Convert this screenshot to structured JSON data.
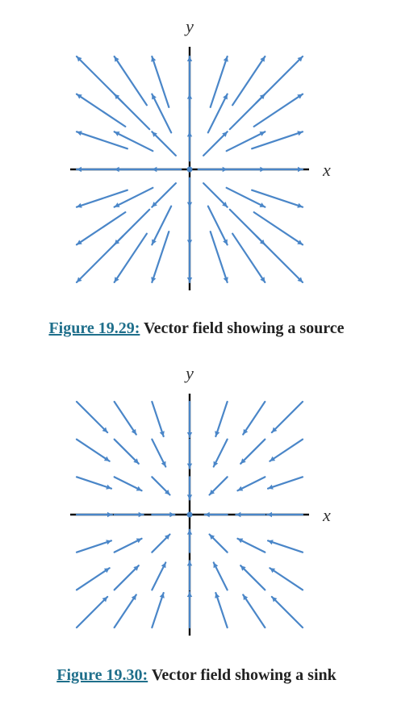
{
  "figures": [
    {
      "caption_link": "Figure 19.29:",
      "caption_text": " Vector field showing a source",
      "x_label": "x",
      "y_label": "y",
      "field": "source",
      "arrow_color": "#4a86c8",
      "axis_color": "#111111"
    },
    {
      "caption_link": "Figure 19.30:",
      "caption_text": " Vector field showing a sink",
      "x_label": "x",
      "y_label": "y",
      "field": "sink",
      "arrow_color": "#4a86c8",
      "axis_color": "#111111"
    }
  ]
}
